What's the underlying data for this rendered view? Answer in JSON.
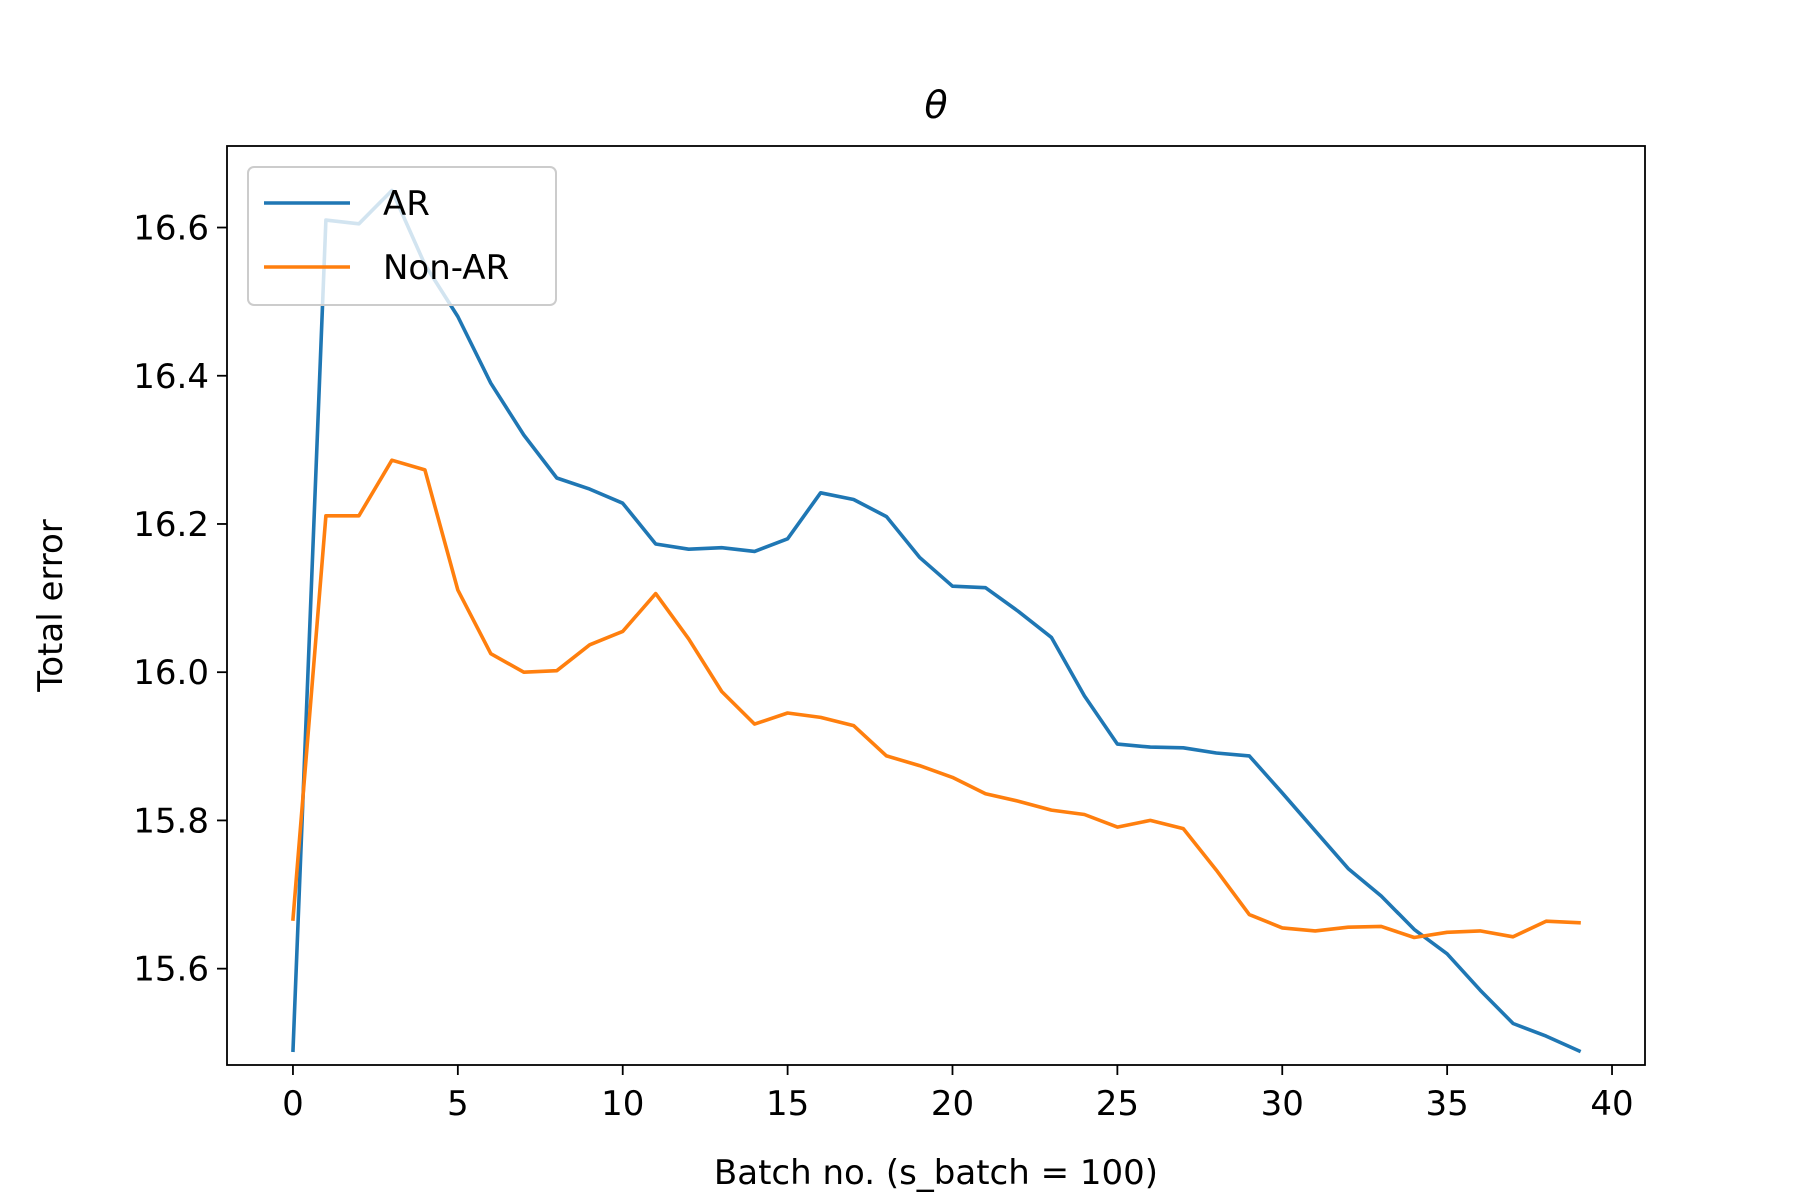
{
  "chart_data": {
    "type": "line",
    "title": "θ",
    "xlabel": "Batch no. (s_batch = 100)",
    "ylabel": "Total error",
    "xlim": [
      -2,
      41
    ],
    "ylim": [
      15.47,
      16.71
    ],
    "xticks": [
      0,
      5,
      10,
      15,
      20,
      25,
      30,
      35,
      40
    ],
    "yticks": [
      15.6,
      15.8,
      16.0,
      16.2,
      16.4,
      16.6
    ],
    "ytick_labels": [
      "15.6",
      "15.8",
      "16.0",
      "16.2",
      "16.4",
      "16.6"
    ],
    "grid": false,
    "legend_position": "top-left",
    "x": [
      0,
      1,
      2,
      3,
      4,
      5,
      6,
      7,
      8,
      9,
      10,
      11,
      12,
      13,
      14,
      15,
      16,
      17,
      18,
      19,
      20,
      21,
      22,
      23,
      24,
      25,
      26,
      27,
      28,
      29,
      30,
      31,
      32,
      33,
      34,
      35,
      36,
      37,
      38,
      39
    ],
    "series": [
      {
        "name": "AR",
        "color": "#1f77b4",
        "values": [
          15.49,
          16.61,
          16.605,
          16.65,
          16.55,
          16.48,
          16.39,
          16.32,
          16.262,
          16.247,
          16.228,
          16.173,
          16.166,
          16.168,
          16.163,
          16.18,
          16.242,
          16.233,
          16.21,
          16.155,
          16.116,
          16.114,
          16.082,
          16.047,
          15.968,
          15.903,
          15.899,
          15.898,
          15.891,
          15.887,
          15.837,
          15.786,
          15.735,
          15.698,
          15.653,
          15.62,
          15.571,
          15.526,
          15.509,
          15.489
        ]
      },
      {
        "name": "Non-AR",
        "color": "#ff7f0e",
        "values": [
          15.667,
          16.211,
          16.211,
          16.286,
          16.273,
          16.111,
          16.025,
          16.0,
          16.002,
          16.037,
          16.055,
          16.106,
          16.045,
          15.974,
          15.93,
          15.945,
          15.939,
          15.928,
          15.887,
          15.874,
          15.858,
          15.836,
          15.826,
          15.814,
          15.808,
          15.791,
          15.8,
          15.789,
          15.733,
          15.673,
          15.655,
          15.651,
          15.656,
          15.657,
          15.642,
          15.649,
          15.651,
          15.643,
          15.664,
          15.662
        ]
      }
    ]
  }
}
